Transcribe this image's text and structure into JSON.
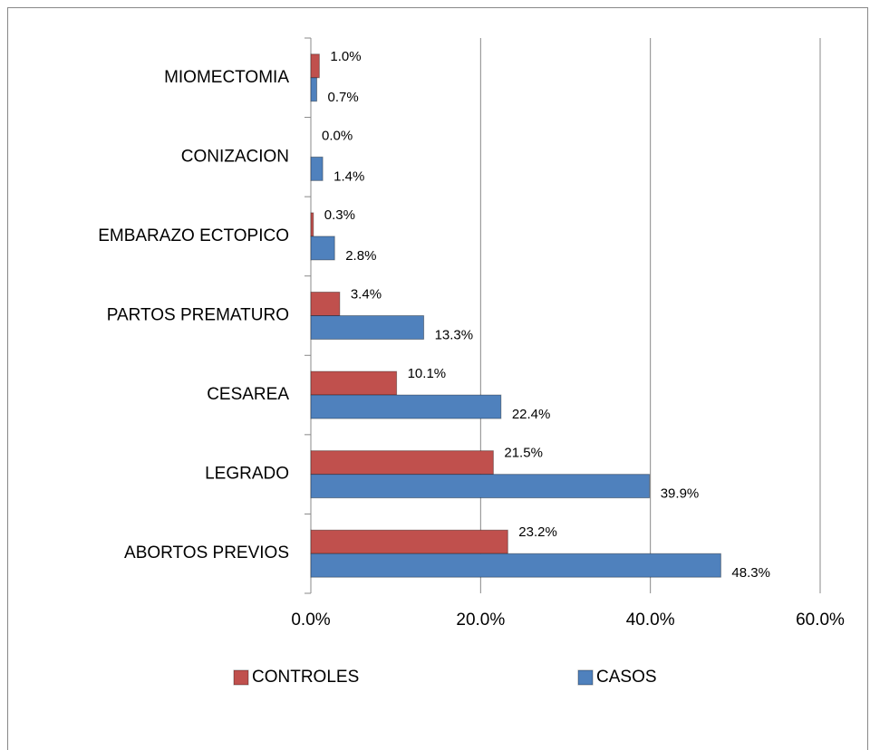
{
  "chart_data": {
    "type": "bar",
    "orientation": "horizontal",
    "categories": [
      "MIOMECTOMIA",
      "CONIZACION",
      "EMBARAZO ECTOPICO",
      "PARTOS PREMATURO",
      "CESAREA",
      "LEGRADO",
      "ABORTOS PREVIOS"
    ],
    "series": [
      {
        "name": "CONTROLES",
        "color": "#c0504d",
        "values": [
          1.0,
          0.0,
          0.3,
          3.4,
          10.1,
          21.5,
          23.2
        ],
        "value_labels": [
          "1.0%",
          "0.0%",
          "0.3%",
          "3.4%",
          "10.1%",
          "21.5%",
          "23.2%"
        ]
      },
      {
        "name": "CASOS",
        "color": "#4f81bd",
        "values": [
          0.7,
          1.4,
          2.8,
          13.3,
          22.4,
          39.9,
          48.3
        ],
        "value_labels": [
          "0.7%",
          "1.4%",
          "2.8%",
          "13.3%",
          "22.4%",
          "39.9%",
          "48.3%"
        ]
      }
    ],
    "xlim": [
      0,
      60
    ],
    "xticks": [
      {
        "value": 0,
        "label": "0.0%"
      },
      {
        "value": 20,
        "label": "20.0%"
      },
      {
        "value": 40,
        "label": "40.0%"
      },
      {
        "value": 60,
        "label": "60.0%"
      }
    ],
    "grid": true,
    "legend": "bottom"
  }
}
